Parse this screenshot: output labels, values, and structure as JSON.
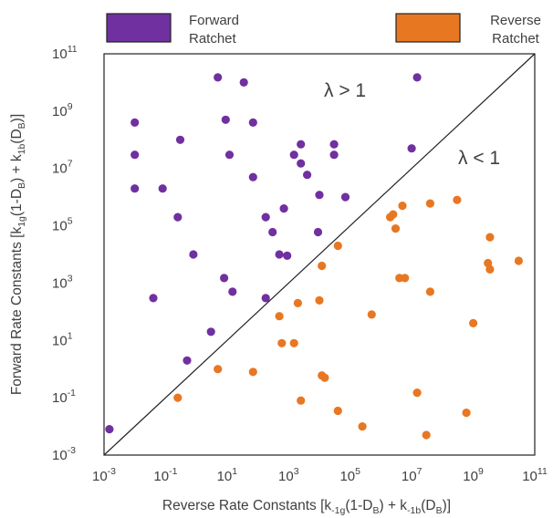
{
  "chart_data": {
    "type": "scatter",
    "x_scale": "log",
    "y_scale": "log",
    "xlim": [
      0.001,
      100000000000
    ],
    "ylim": [
      0.001,
      100000000000
    ],
    "x_tick_labels": [
      {
        "base": "10",
        "exp": "-3"
      },
      {
        "base": "10",
        "exp": "-1"
      },
      {
        "base": "10",
        "exp": "1"
      },
      {
        "base": "10",
        "exp": "3"
      },
      {
        "base": "10",
        "exp": "5"
      },
      {
        "base": "10",
        "exp": "7"
      },
      {
        "base": "10",
        "exp": "9"
      },
      {
        "base": "10",
        "exp": "11"
      }
    ],
    "y_tick_labels": [
      {
        "base": "10",
        "exp": "-3"
      },
      {
        "base": "10",
        "exp": "-1"
      },
      {
        "base": "10",
        "exp": "1"
      },
      {
        "base": "10",
        "exp": "3"
      },
      {
        "base": "10",
        "exp": "5"
      },
      {
        "base": "10",
        "exp": "7"
      },
      {
        "base": "10",
        "exp": "9"
      },
      {
        "base": "10",
        "exp": "11"
      }
    ],
    "xlabel": {
      "main": "Reverse Rate Constants [k",
      "s1": "-1g",
      "m1": "(1-D",
      "s2": "B",
      "m2": ") + k",
      "s3": "-1b",
      "m3": "(D",
      "s4": "B",
      "m4": ")]"
    },
    "ylabel": {
      "main": "Forward Rate Constants [k",
      "s1": "1g",
      "m1": "(1-D",
      "s2": "B",
      "m2": ") + k",
      "s3": "1b",
      "m3": "(D",
      "s4": "B",
      "m4": ")]"
    },
    "annotations": {
      "upper": "λ > 1",
      "lower": "λ < 1"
    },
    "diagonal": {
      "from": [
        0.001,
        0.001
      ],
      "to": [
        100000000000,
        100000000000
      ]
    },
    "legend_position": "top",
    "series": [
      {
        "legend_line1": "Forward",
        "legend_line2": "Ratchet",
        "color": "#7030A0",
        "points": [
          [
            0.0015,
            0.008
          ],
          [
            0.01,
            400000000
          ],
          [
            0.01,
            30000000
          ],
          [
            0.01,
            2000000
          ],
          [
            0.08,
            2000000
          ],
          [
            0.25,
            200000
          ],
          [
            0.04,
            300
          ],
          [
            0.3,
            100000000
          ],
          [
            0.5,
            2
          ],
          [
            0.8,
            10000
          ],
          [
            3,
            20
          ],
          [
            5,
            15000000000
          ],
          [
            9,
            500000000
          ],
          [
            8,
            1500
          ],
          [
            12,
            30000000
          ],
          [
            15,
            500
          ],
          [
            35,
            10000000000
          ],
          [
            70,
            400000000
          ],
          [
            70,
            5000000
          ],
          [
            180,
            200000
          ],
          [
            180,
            300
          ],
          [
            300,
            60000
          ],
          [
            500,
            10000
          ],
          [
            700,
            400000
          ],
          [
            900,
            9000
          ],
          [
            1500,
            30000000
          ],
          [
            2500,
            70000000
          ],
          [
            2500,
            15000000
          ],
          [
            4000,
            6000000
          ],
          [
            9000,
            60000
          ],
          [
            10000,
            1200000
          ],
          [
            30000,
            70000000
          ],
          [
            30000,
            30000000
          ],
          [
            70000,
            1000000
          ],
          [
            10000000,
            50000000
          ],
          [
            15000000,
            15000000000
          ]
        ]
      },
      {
        "legend_line1": "Reverse",
        "legend_line2": "Ratchet",
        "color": "#E87722",
        "points": [
          [
            0.25,
            0.1
          ],
          [
            5,
            1
          ],
          [
            70,
            0.8
          ],
          [
            500,
            70
          ],
          [
            600,
            8
          ],
          [
            1500,
            8
          ],
          [
            2000,
            200
          ],
          [
            2500,
            0.08
          ],
          [
            10000,
            250
          ],
          [
            12000,
            4000
          ],
          [
            15000,
            0.5
          ],
          [
            12000,
            0.6
          ],
          [
            40000,
            0.035
          ],
          [
            40000,
            20000
          ],
          [
            250000,
            0.01
          ],
          [
            500000,
            80
          ],
          [
            2000000,
            200000
          ],
          [
            2500000,
            250000
          ],
          [
            3000000,
            80000
          ],
          [
            4000000,
            1500
          ],
          [
            6000000,
            1500
          ],
          [
            5000000,
            500000
          ],
          [
            15000000,
            0.15
          ],
          [
            30000000,
            0.005
          ],
          [
            40000000,
            600000
          ],
          [
            40000000,
            500
          ],
          [
            300000000,
            800000
          ],
          [
            600000000,
            0.03
          ],
          [
            1000000000,
            40
          ],
          [
            3000000000,
            5000
          ],
          [
            3500000000,
            3000
          ],
          [
            3500000000,
            40000
          ],
          [
            30000000000,
            6000
          ]
        ]
      }
    ]
  }
}
